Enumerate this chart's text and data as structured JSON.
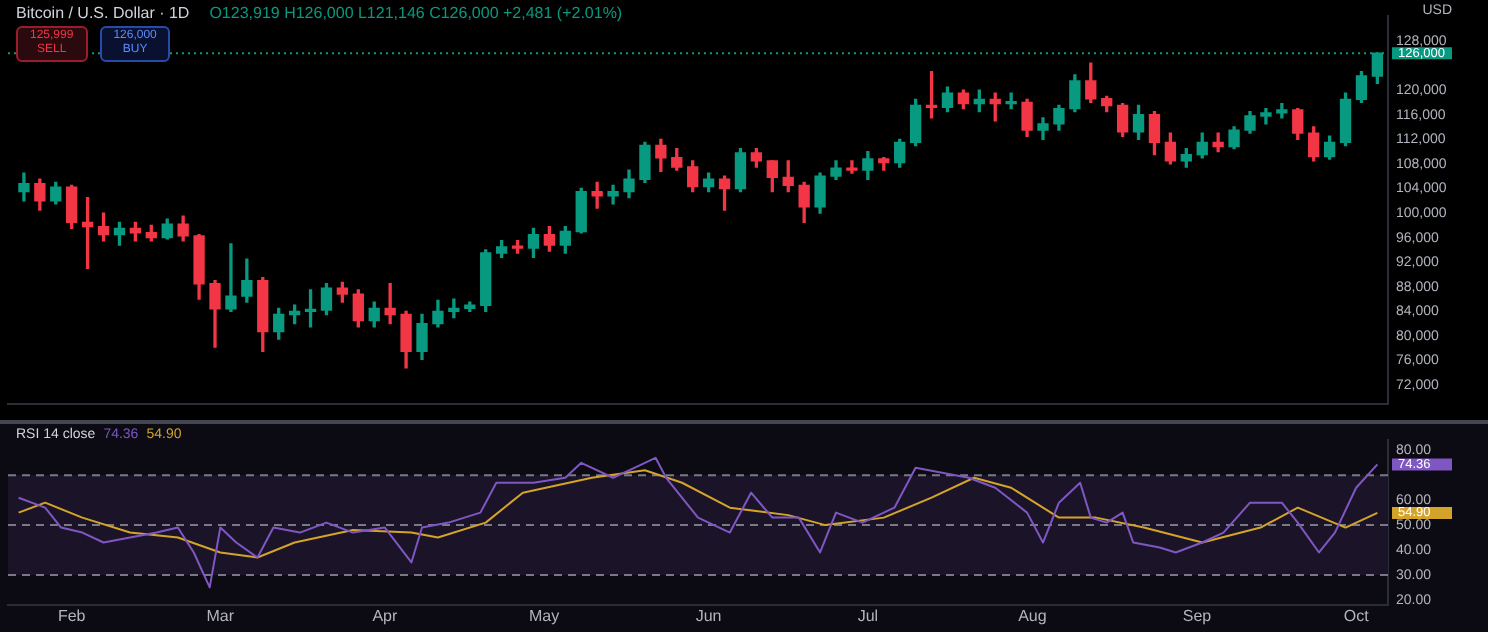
{
  "chart_data": [
    {
      "type": "candlestick",
      "title": "Bitcoin / U.S. Dollar · 1D",
      "subtitle": "O123,919 H126,000 L121,146 C126,000 +2,481 (+2.01%)",
      "ylabel": "USD",
      "annotations": [
        "125,999",
        "SELL",
        "126,000",
        "BUY"
      ],
      "x": [
        "--01-23",
        "--01-26",
        "--01-29",
        "--02-01",
        "--02-04",
        "--02-07",
        "--02-10",
        "--02-13",
        "--02-16",
        "--02-19",
        "--02-22",
        "--02-25",
        "--02-28",
        "--03-03",
        "--03-06",
        "--03-09",
        "--03-12",
        "--03-15",
        "--03-18",
        "--03-21",
        "--03-24",
        "--03-27",
        "--03-30",
        "--04-02",
        "--04-05",
        "--04-08",
        "--04-11",
        "--04-14",
        "--04-17",
        "--04-20",
        "--04-23",
        "--04-26",
        "--04-29",
        "--05-02",
        "--05-05",
        "--05-08",
        "--05-11",
        "--05-14",
        "--05-17",
        "--05-20",
        "--05-23",
        "--05-26",
        "--05-29",
        "--06-01",
        "--06-04",
        "--06-07",
        "--06-10",
        "--06-13",
        "--06-16",
        "--06-19",
        "--06-22",
        "--06-25",
        "--06-28",
        "--07-01",
        "--07-04",
        "--07-07",
        "--07-10",
        "--07-13",
        "--07-16",
        "--07-19",
        "--07-22",
        "--07-25",
        "--07-28",
        "--07-31",
        "--08-03",
        "--08-06",
        "--08-09",
        "--08-12",
        "--08-15",
        "--08-18",
        "--08-21",
        "--08-24",
        "--08-27",
        "--08-30",
        "--09-02",
        "--09-05",
        "--09-08",
        "--09-11",
        "--09-14",
        "--09-17",
        "--09-20",
        "--09-23",
        "--09-26",
        "--09-29",
        "--10-02",
        "--10-05"
      ],
      "ohlc": [
        [
          103500,
          106500,
          102000,
          104800
        ],
        [
          104800,
          105500,
          100500,
          102000
        ],
        [
          102000,
          105000,
          101500,
          104200
        ],
        [
          104200,
          104500,
          97500,
          98500
        ],
        [
          98500,
          102500,
          91000,
          97800
        ],
        [
          97800,
          100000,
          95500,
          96500
        ],
        [
          96500,
          98500,
          94800,
          97500
        ],
        [
          97500,
          98500,
          95500,
          96800
        ],
        [
          96800,
          98000,
          95500,
          96000
        ],
        [
          96000,
          99000,
          95800,
          98200
        ],
        [
          98200,
          99500,
          95500,
          96300
        ],
        [
          96300,
          96500,
          86000,
          88500
        ],
        [
          88500,
          89000,
          78200,
          84400
        ],
        [
          84400,
          95000,
          84000,
          86500
        ],
        [
          86500,
          92500,
          85500,
          89000
        ],
        [
          89000,
          89500,
          77500,
          80700
        ],
        [
          80700,
          84500,
          79500,
          83500
        ],
        [
          83500,
          85000,
          82000,
          84000
        ],
        [
          84000,
          87500,
          81500,
          84200
        ],
        [
          84200,
          88500,
          83500,
          87800
        ],
        [
          87800,
          88700,
          85500,
          86800
        ],
        [
          86800,
          87500,
          81500,
          82500
        ],
        [
          82500,
          85500,
          81500,
          84500
        ],
        [
          84500,
          88500,
          82000,
          83500
        ],
        [
          83500,
          84000,
          74800,
          77500
        ],
        [
          77500,
          83500,
          76200,
          82000
        ],
        [
          82000,
          85800,
          81500,
          84000
        ],
        [
          84000,
          86000,
          83000,
          84500
        ],
        [
          84500,
          85500,
          84000,
          85000
        ],
        [
          85000,
          94000,
          84000,
          93500
        ],
        [
          93500,
          95500,
          92800,
          94500
        ],
        [
          94500,
          95500,
          93500,
          94300
        ],
        [
          94300,
          97500,
          92800,
          96500
        ],
        [
          96500,
          97800,
          93800,
          94800
        ],
        [
          94800,
          97800,
          93500,
          97000
        ],
        [
          97000,
          104000,
          96800,
          103500
        ],
        [
          103500,
          105000,
          100800,
          102800
        ],
        [
          102800,
          104500,
          101500,
          103500
        ],
        [
          103500,
          107000,
          102500,
          105500
        ],
        [
          105500,
          111500,
          105000,
          111000
        ],
        [
          111000,
          112000,
          106800,
          109000
        ],
        [
          109000,
          110500,
          107000,
          107500
        ],
        [
          107500,
          108500,
          103500,
          104300
        ],
        [
          104300,
          106500,
          103500,
          105500
        ],
        [
          105500,
          106000,
          100500,
          104000
        ],
        [
          104000,
          110500,
          103500,
          109800
        ],
        [
          109800,
          110500,
          107500,
          108500
        ],
        [
          108500,
          108500,
          103500,
          105800
        ],
        [
          105800,
          108500,
          103500,
          104500
        ],
        [
          104500,
          105000,
          98500,
          101000
        ],
        [
          101000,
          106500,
          100000,
          106000
        ],
        [
          106000,
          108500,
          105500,
          107300
        ],
        [
          107300,
          108500,
          106500,
          107000
        ],
        [
          107000,
          110000,
          105500,
          108800
        ],
        [
          108800,
          109000,
          107000,
          108200
        ],
        [
          108200,
          112000,
          107500,
          111500
        ],
        [
          111500,
          118500,
          111000,
          117500
        ],
        [
          117500,
          123000,
          115500,
          117200
        ],
        [
          117200,
          120500,
          116500,
          119500
        ],
        [
          119500,
          120000,
          117000,
          117800
        ],
        [
          117800,
          120000,
          116500,
          118500
        ],
        [
          118500,
          119500,
          115000,
          117800
        ],
        [
          117800,
          119500,
          117000,
          118000
        ],
        [
          118000,
          118500,
          112500,
          113500
        ],
        [
          113500,
          115500,
          112000,
          114500
        ],
        [
          114500,
          117500,
          113500,
          117000
        ],
        [
          117000,
          122500,
          116500,
          121500
        ],
        [
          121500,
          124400,
          118000,
          118600
        ],
        [
          118600,
          119000,
          116500,
          117500
        ],
        [
          117500,
          117800,
          112500,
          113200
        ],
        [
          113200,
          117500,
          112000,
          116000
        ],
        [
          116000,
          116500,
          109500,
          111500
        ],
        [
          111500,
          113000,
          108000,
          108500
        ],
        [
          108500,
          110500,
          107500,
          109500
        ],
        [
          109500,
          113000,
          109000,
          111500
        ],
        [
          111500,
          113000,
          110000,
          110800
        ],
        [
          110800,
          114000,
          110500,
          113500
        ],
        [
          113500,
          116500,
          113000,
          115800
        ],
        [
          115800,
          117000,
          114500,
          116300
        ],
        [
          116300,
          117800,
          115500,
          116800
        ],
        [
          116800,
          117000,
          112000,
          113000
        ],
        [
          113000,
          114000,
          108500,
          109200
        ],
        [
          109200,
          112500,
          108800,
          111500
        ],
        [
          111500,
          119500,
          111000,
          118500
        ],
        [
          118500,
          123000,
          118000,
          122300
        ],
        [
          122300,
          126000,
          121100,
          126000
        ]
      ],
      "xlim": [
        "--01-20",
        "--10-07"
      ],
      "ylim": [
        69000,
        132000
      ],
      "yticks": [
        {
          "value": 72000,
          "label": "72,000"
        },
        {
          "value": 76000,
          "label": "76,000"
        },
        {
          "value": 80000,
          "label": "80,000"
        },
        {
          "value": 84000,
          "label": "84,000"
        },
        {
          "value": 88000,
          "label": "88,000"
        },
        {
          "value": 92000,
          "label": "92,000"
        },
        {
          "value": 96000,
          "label": "96,000"
        },
        {
          "value": 100000,
          "label": "100,000"
        },
        {
          "value": 104000,
          "label": "104,000"
        },
        {
          "value": 108000,
          "label": "108,000"
        },
        {
          "value": 112000,
          "label": "112,000"
        },
        {
          "value": 116000,
          "label": "116,000"
        },
        {
          "value": 120000,
          "label": "120,000"
        },
        {
          "value": 128000,
          "label": "128,000"
        }
      ],
      "ref_lines": [
        {
          "axis": "y",
          "value": 126000,
          "label": "126,000",
          "color": "#089981",
          "line_style": "dotted"
        }
      ],
      "tick_labels": "y",
      "grid": false
    },
    {
      "type": "line",
      "title": "RSI 14 close",
      "line_style": "solid",
      "marker": "none",
      "grid": false,
      "series": [
        {
          "color": "#7e57c2",
          "x": [
            "--01-22",
            "--01-27",
            "--01-30",
            "--02-03",
            "--02-07",
            "--02-12",
            "--02-17",
            "--02-21",
            "--02-24",
            "--02-27",
            "--03-01",
            "--03-04",
            "--03-08",
            "--03-11",
            "--03-16",
            "--03-21",
            "--03-26",
            "--04-01",
            "--04-06",
            "--04-08",
            "--04-13",
            "--04-19",
            "--04-22",
            "--04-29",
            "--05-05",
            "--05-08",
            "--05-14",
            "--05-18",
            "--05-22",
            "--05-24",
            "--05-30",
            "--06-05",
            "--06-09",
            "--06-13",
            "--06-18",
            "--06-22",
            "--06-25",
            "--06-30",
            "--07-06",
            "--07-10",
            "--07-15",
            "--07-20",
            "--07-25",
            "--07-31",
            "--08-03",
            "--08-06",
            "--08-10",
            "--08-12",
            "--08-15",
            "--08-18",
            "--08-20",
            "--08-25",
            "--08-28",
            "--09-02",
            "--09-06",
            "--09-11",
            "--09-17",
            "--09-20",
            "--09-24",
            "--09-27",
            "--10-01",
            "--10-05"
          ],
          "values": [
            61,
            57,
            49,
            47,
            43,
            45,
            47,
            49,
            39,
            25,
            49,
            43,
            37,
            49,
            47,
            51,
            47,
            49,
            35,
            49,
            51,
            55,
            67,
            67,
            69,
            75,
            69,
            73,
            77,
            69,
            53,
            47,
            63,
            53,
            53,
            39,
            55,
            51,
            57,
            73,
            71,
            69,
            65,
            55,
            43,
            59,
            67,
            53,
            51,
            55,
            43,
            41,
            39,
            43,
            47,
            59,
            59,
            51,
            39,
            47,
            65,
            74.36
          ],
          "value_labels": [
            null,
            null,
            null,
            null,
            null,
            null,
            null,
            null,
            null,
            null,
            null,
            null,
            null,
            null,
            null,
            null,
            null,
            null,
            null,
            null,
            null,
            null,
            null,
            null,
            null,
            null,
            null,
            null,
            null,
            null,
            null,
            null,
            null,
            null,
            null,
            null,
            null,
            null,
            null,
            null,
            null,
            null,
            null,
            null,
            null,
            null,
            null,
            null,
            null,
            null,
            null,
            null,
            null,
            null,
            null,
            null,
            null,
            null,
            null,
            null,
            null,
            "74.36"
          ]
        },
        {
          "color": "#d4a42a",
          "x": [
            "--01-22",
            "--01-27",
            "--02-03",
            "--02-12",
            "--02-21",
            "--03-01",
            "--03-08",
            "--03-15",
            "--03-26",
            "--04-06",
            "--04-11",
            "--04-20",
            "--04-27",
            "--05-10",
            "--05-20",
            "--05-27",
            "--06-05",
            "--06-16",
            "--06-23",
            "--07-04",
            "--07-13",
            "--07-21",
            "--07-28",
            "--08-06",
            "--08-13",
            "--08-22",
            "--09-02",
            "--09-13",
            "--09-20",
            "--09-29",
            "--10-05"
          ],
          "values": [
            55,
            59,
            53,
            47,
            45,
            39,
            37,
            43,
            48,
            47,
            45,
            51,
            63,
            69,
            72,
            67,
            57,
            54,
            50,
            53,
            61,
            69,
            65,
            53,
            53,
            49,
            43,
            49,
            57,
            49,
            54.9
          ],
          "value_labels": [
            null,
            null,
            null,
            null,
            null,
            null,
            null,
            null,
            null,
            null,
            null,
            null,
            null,
            null,
            null,
            null,
            null,
            null,
            null,
            null,
            null,
            null,
            null,
            null,
            null,
            null,
            null,
            null,
            null,
            null,
            "54.90"
          ]
        }
      ],
      "xlim": [
        "--01-20",
        "--10-07"
      ],
      "ylim": [
        18,
        84
      ],
      "xticks": [
        {
          "value": "--02-01",
          "label": "Feb"
        },
        {
          "value": "--03-01",
          "label": "Mar"
        },
        {
          "value": "--04-01",
          "label": "Apr"
        },
        {
          "value": "--05-01",
          "label": "May"
        },
        {
          "value": "--06-01",
          "label": "Jun"
        },
        {
          "value": "--07-01",
          "label": "Jul"
        },
        {
          "value": "--08-01",
          "label": "Aug"
        },
        {
          "value": "--09-01",
          "label": "Sep"
        },
        {
          "value": "--10-01",
          "label": "Oct"
        }
      ],
      "yticks": [
        {
          "value": 20,
          "label": "20.00"
        },
        {
          "value": 30,
          "label": "30.00"
        },
        {
          "value": 40,
          "label": "40.00"
        },
        {
          "value": 50,
          "label": "50.00"
        },
        {
          "value": 60,
          "label": "60.00"
        },
        {
          "value": 80,
          "label": "80.00"
        }
      ],
      "ref_lines": [
        {
          "axis": "y",
          "value": 70,
          "color": "#787b86",
          "line_style": "dashed"
        },
        {
          "axis": "y",
          "value": 50,
          "color": "#787b86",
          "line_style": "dashed"
        },
        {
          "axis": "y",
          "value": 30,
          "color": "#787b86",
          "line_style": "dashed"
        }
      ],
      "bands": [
        {
          "axis": "y",
          "from": 30,
          "to": 70,
          "color": "#1b1428"
        }
      ]
    }
  ]
}
